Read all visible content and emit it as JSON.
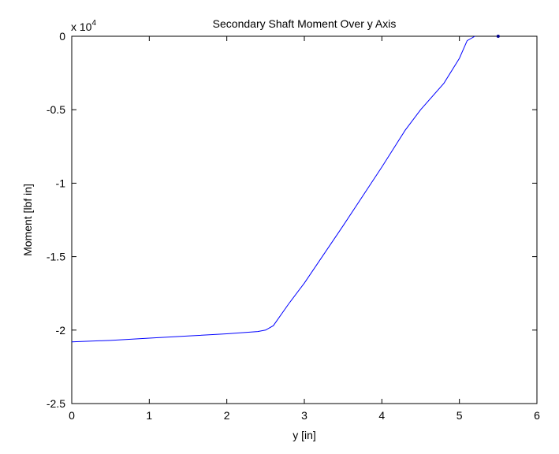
{
  "chart_data": {
    "type": "line",
    "title": "Secondary Shaft Moment Over y Axis",
    "x_label": "y [in]",
    "y_label": "Moment [lbf in]",
    "y_multiplier_base": "x 10",
    "y_multiplier_exponent": "4",
    "xlim": [
      0,
      6
    ],
    "xticks": [
      0,
      1,
      2,
      3,
      4,
      5,
      6
    ],
    "ylim": [
      -2.5,
      0
    ],
    "yticks": [
      -2.5,
      -2,
      -1.5,
      -1,
      -0.5,
      0
    ],
    "grid": false,
    "series": [
      {
        "color": "#0000ff",
        "marker": false,
        "x": [
          0,
          0.5,
          1,
          1.5,
          2,
          2.4,
          2.5,
          2.6,
          2.8,
          3,
          3.5,
          4,
          4.3,
          4.5,
          4.8,
          5,
          5.1,
          5.2
        ],
        "values": [
          -2.08,
          -2.07,
          -2.055,
          -2.04,
          -2.025,
          -2.01,
          -2.0,
          -1.97,
          -1.82,
          -1.68,
          -1.29,
          -0.89,
          -0.64,
          -0.5,
          -0.32,
          -0.15,
          -0.03,
          0
        ]
      },
      {
        "color": "#00008b",
        "marker": true,
        "x": [
          5.5
        ],
        "values": [
          0
        ]
      }
    ]
  }
}
